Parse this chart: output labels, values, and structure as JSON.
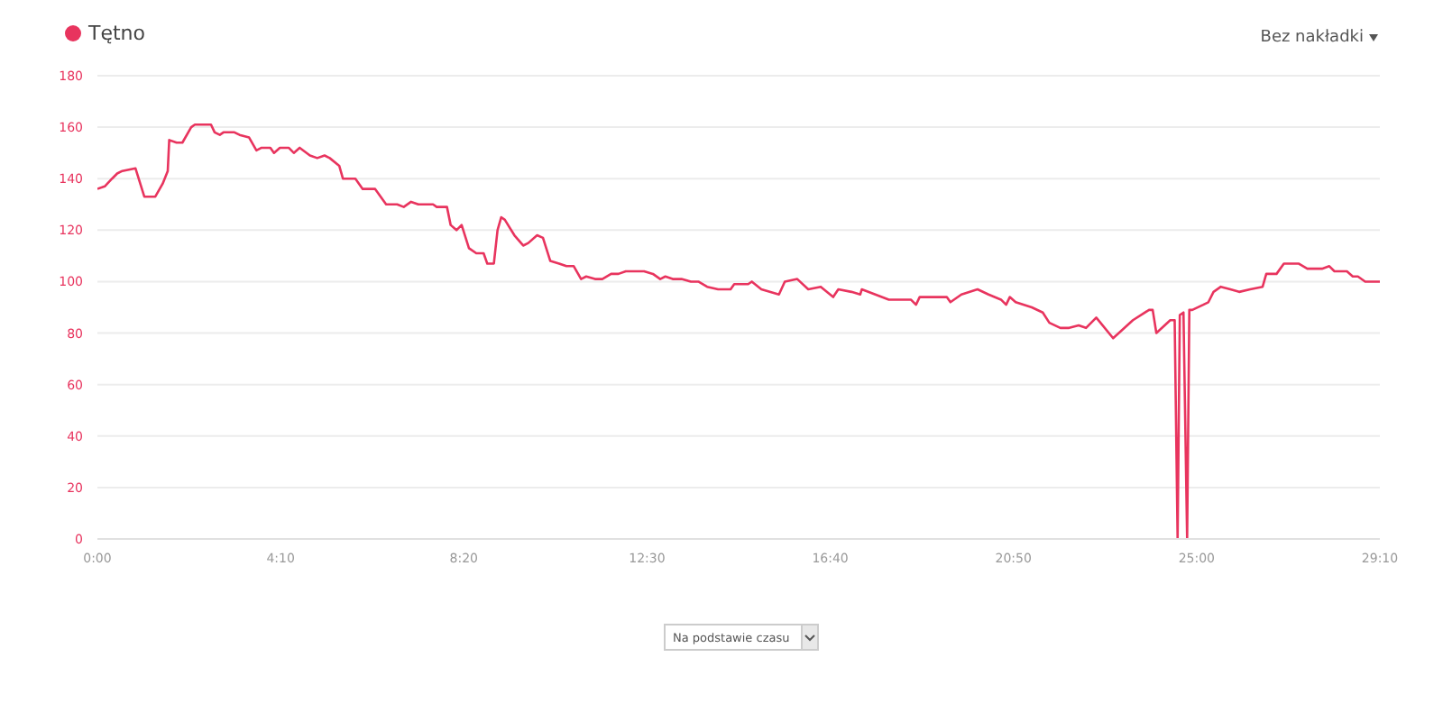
{
  "chart_data": {
    "type": "line",
    "legend": "top left",
    "grid": "y",
    "marker": "none",
    "line_style": "solid",
    "xlim": [
      0,
      1750
    ],
    "xticks": [
      {
        "value": 0,
        "label": "0:00"
      },
      {
        "value": 250,
        "label": "4:10"
      },
      {
        "value": 500,
        "label": "8:20"
      },
      {
        "value": 750,
        "label": "12:30"
      },
      {
        "value": 1000,
        "label": "16:40"
      },
      {
        "value": 1250,
        "label": "20:50"
      },
      {
        "value": 1500,
        "label": "25:00"
      },
      {
        "value": 1750,
        "label": "29:10"
      }
    ],
    "ylim": [
      0,
      180
    ],
    "yticks": [
      0,
      20,
      40,
      60,
      80,
      100,
      120,
      140,
      160,
      180
    ],
    "annotations": [
      "Bez nakładki",
      "Na podstawie czasu"
    ],
    "series": [
      {
        "name": "Tętno",
        "color": "#e8345e",
        "x": [
          0,
          10,
          20,
          27,
          34,
          52,
          64,
          79,
          89,
          96,
          98,
          108,
          116,
          128,
          133,
          155,
          160,
          167,
          172,
          187,
          194,
          207,
          217,
          224,
          236,
          241,
          249,
          261,
          268,
          276,
          290,
          300,
          310,
          317,
          330,
          335,
          352,
          362,
          379,
          394,
          409,
          418,
          428,
          438,
          458,
          463,
          477,
          482,
          490,
          497,
          507,
          517,
          527,
          532,
          541,
          546,
          551,
          556,
          569,
          581,
          588,
          600,
          608,
          618,
          630,
          640,
          650,
          660,
          667,
          679,
          689,
          701,
          711,
          721,
          741,
          746,
          758,
          768,
          775,
          785,
          797,
          810,
          820,
          832,
          847,
          864,
          869,
          888,
          893,
          906,
          930,
          938,
          955,
          970,
          987,
          1004,
          1011,
          1029,
          1041,
          1043,
          1080,
          1110,
          1117,
          1122,
          1159,
          1164,
          1179,
          1201,
          1216,
          1233,
          1240,
          1245,
          1253,
          1275,
          1290,
          1299,
          1314,
          1326,
          1339,
          1349,
          1363,
          1386,
          1413,
          1435,
          1440,
          1445,
          1464,
          1470,
          1474,
          1477,
          1482,
          1487,
          1490,
          1494,
          1509,
          1516,
          1523,
          1533,
          1546,
          1558,
          1573,
          1590,
          1595,
          1609,
          1619,
          1639,
          1651,
          1671,
          1681,
          1688,
          1705,
          1713,
          1720,
          1730,
          1750
        ],
        "values": [
          136,
          137,
          140,
          142,
          143,
          144,
          133,
          133,
          138,
          143,
          155,
          154,
          154,
          160,
          161,
          161,
          158,
          157,
          158,
          158,
          157,
          156,
          151,
          152,
          152,
          150,
          152,
          152,
          150,
          152,
          149,
          148,
          149,
          148,
          145,
          140,
          140,
          136,
          136,
          130,
          130,
          129,
          131,
          130,
          130,
          129,
          129,
          122,
          120,
          122,
          113,
          111,
          111,
          107,
          107,
          120,
          125,
          124,
          118,
          114,
          115,
          118,
          117,
          108,
          107,
          106,
          106,
          101,
          102,
          101,
          101,
          103,
          103,
          104,
          104,
          104,
          103,
          101,
          102,
          101,
          101,
          100,
          100,
          98,
          97,
          97,
          99,
          99,
          100,
          97,
          95,
          100,
          101,
          97,
          98,
          94,
          97,
          96,
          95,
          97,
          93,
          93,
          91,
          94,
          94,
          92,
          95,
          97,
          95,
          93,
          91,
          94,
          92,
          90,
          88,
          84,
          82,
          82,
          83,
          82,
          86,
          78,
          85,
          89,
          89,
          80,
          85,
          85,
          0,
          87,
          88,
          0,
          89,
          89,
          91,
          92,
          96,
          98,
          97,
          96,
          97,
          98,
          103,
          103,
          107,
          107,
          105,
          105,
          106,
          104,
          104,
          102,
          102,
          100,
          100
        ]
      }
    ]
  }
}
